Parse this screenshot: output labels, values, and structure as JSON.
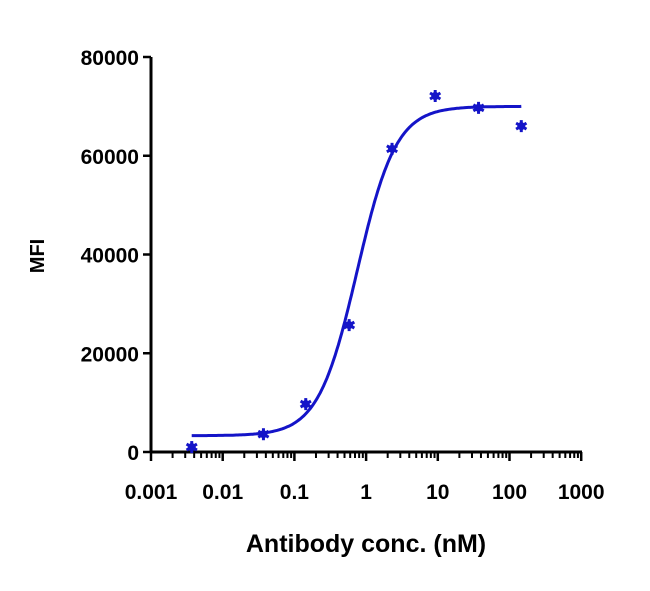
{
  "chart_data": {
    "type": "scatter",
    "title": "",
    "xlabel": "Antibody conc. (nM)",
    "ylabel": "MFI",
    "xscale": "log",
    "xlim": [
      0.001,
      1000
    ],
    "ylim": [
      0,
      80000
    ],
    "x_ticks": [
      "0.001",
      "0.01",
      "0.1",
      "1",
      "10",
      "100",
      "1000"
    ],
    "y_ticks": [
      "0",
      "20000",
      "40000",
      "60000",
      "80000"
    ],
    "grid": false,
    "legend": null,
    "color": "#1414c8",
    "series": [
      {
        "name": "MFI",
        "marker": "asterisk",
        "x": [
          0.0037,
          0.037,
          0.144,
          0.58,
          2.3,
          9.2,
          37,
          146
        ],
        "y": [
          1000,
          3600,
          9700,
          25700,
          61400,
          72100,
          69700,
          66000
        ]
      }
    ],
    "fit": {
      "type": "4PL sigmoid",
      "bottom": 3300,
      "top": 70000,
      "ec50": 0.75,
      "hill": 1.6,
      "x_range": [
        0.0037,
        146
      ]
    }
  }
}
